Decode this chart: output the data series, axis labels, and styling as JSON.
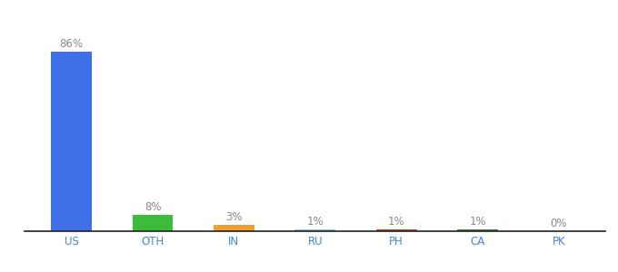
{
  "categories": [
    "US",
    "OTH",
    "IN",
    "RU",
    "PH",
    "CA",
    "PK"
  ],
  "values": [
    86,
    8,
    3,
    1,
    1,
    1,
    0
  ],
  "labels": [
    "86%",
    "8%",
    "3%",
    "1%",
    "1%",
    "1%",
    "0%"
  ],
  "colors": [
    "#3d6fe8",
    "#3dbb3d",
    "#f0a030",
    "#7ec8f0",
    "#c84820",
    "#3d8040",
    "#aaaaaa"
  ],
  "label_fontsize": 8.5,
  "tick_fontsize": 8.5,
  "bar_width": 0.5,
  "ylim": [
    0,
    95
  ],
  "background_color": "#ffffff",
  "label_color": "#888888",
  "tick_color": "#4488cc"
}
